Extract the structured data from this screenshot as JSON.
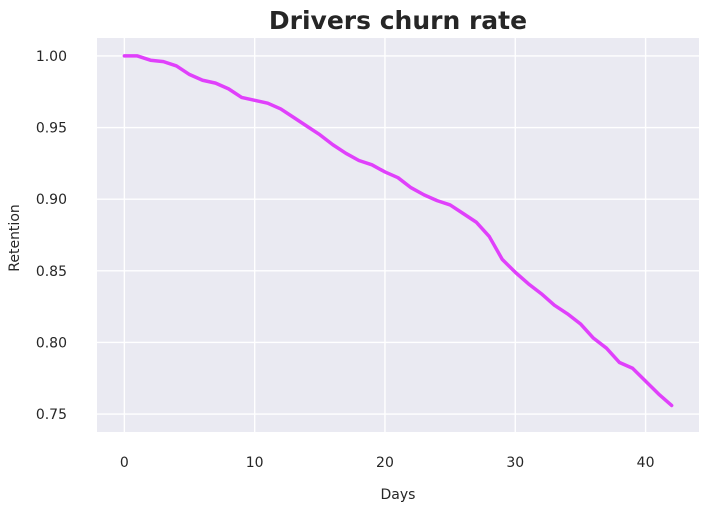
{
  "chart_data": {
    "type": "line",
    "title": "Drivers churn rate",
    "xlabel": "Days",
    "ylabel": "Retention",
    "xlim": [
      -2.1,
      44.1
    ],
    "ylim": [
      0.7375,
      1.0125
    ],
    "grid": true,
    "xticks": [
      {
        "value": 0,
        "label": "0"
      },
      {
        "value": 10,
        "label": "10"
      },
      {
        "value": 20,
        "label": "20"
      },
      {
        "value": 30,
        "label": "30"
      },
      {
        "value": 40,
        "label": "40"
      }
    ],
    "yticks": [
      {
        "value": 0.75,
        "label": "0.75"
      },
      {
        "value": 0.8,
        "label": "0.80"
      },
      {
        "value": 0.85,
        "label": "0.85"
      },
      {
        "value": 0.9,
        "label": "0.90"
      },
      {
        "value": 0.95,
        "label": "0.95"
      },
      {
        "value": 1.0,
        "label": "1.00"
      }
    ],
    "series": [
      {
        "color": "#e040fb",
        "x": [
          0,
          1,
          2,
          3,
          4,
          5,
          6,
          7,
          8,
          9,
          10,
          11,
          12,
          13,
          14,
          15,
          16,
          17,
          18,
          19,
          20,
          21,
          22,
          23,
          24,
          25,
          26,
          27,
          28,
          29,
          30,
          31,
          32,
          33,
          34,
          35,
          36,
          37,
          38,
          39,
          40,
          41,
          42
        ],
        "y": [
          1.0,
          1.0,
          0.997,
          0.996,
          0.993,
          0.987,
          0.983,
          0.981,
          0.977,
          0.971,
          0.969,
          0.967,
          0.963,
          0.957,
          0.951,
          0.945,
          0.938,
          0.932,
          0.927,
          0.924,
          0.919,
          0.915,
          0.908,
          0.903,
          0.899,
          0.896,
          0.89,
          0.884,
          0.874,
          0.858,
          0.849,
          0.841,
          0.834,
          0.826,
          0.82,
          0.813,
          0.803,
          0.796,
          0.786,
          0.782,
          0.773,
          0.764,
          0.756
        ]
      }
    ]
  },
  "style": {
    "plot_background": "#eaeaf2",
    "grid_color": "#ffffff",
    "text_color": "#262626"
  }
}
